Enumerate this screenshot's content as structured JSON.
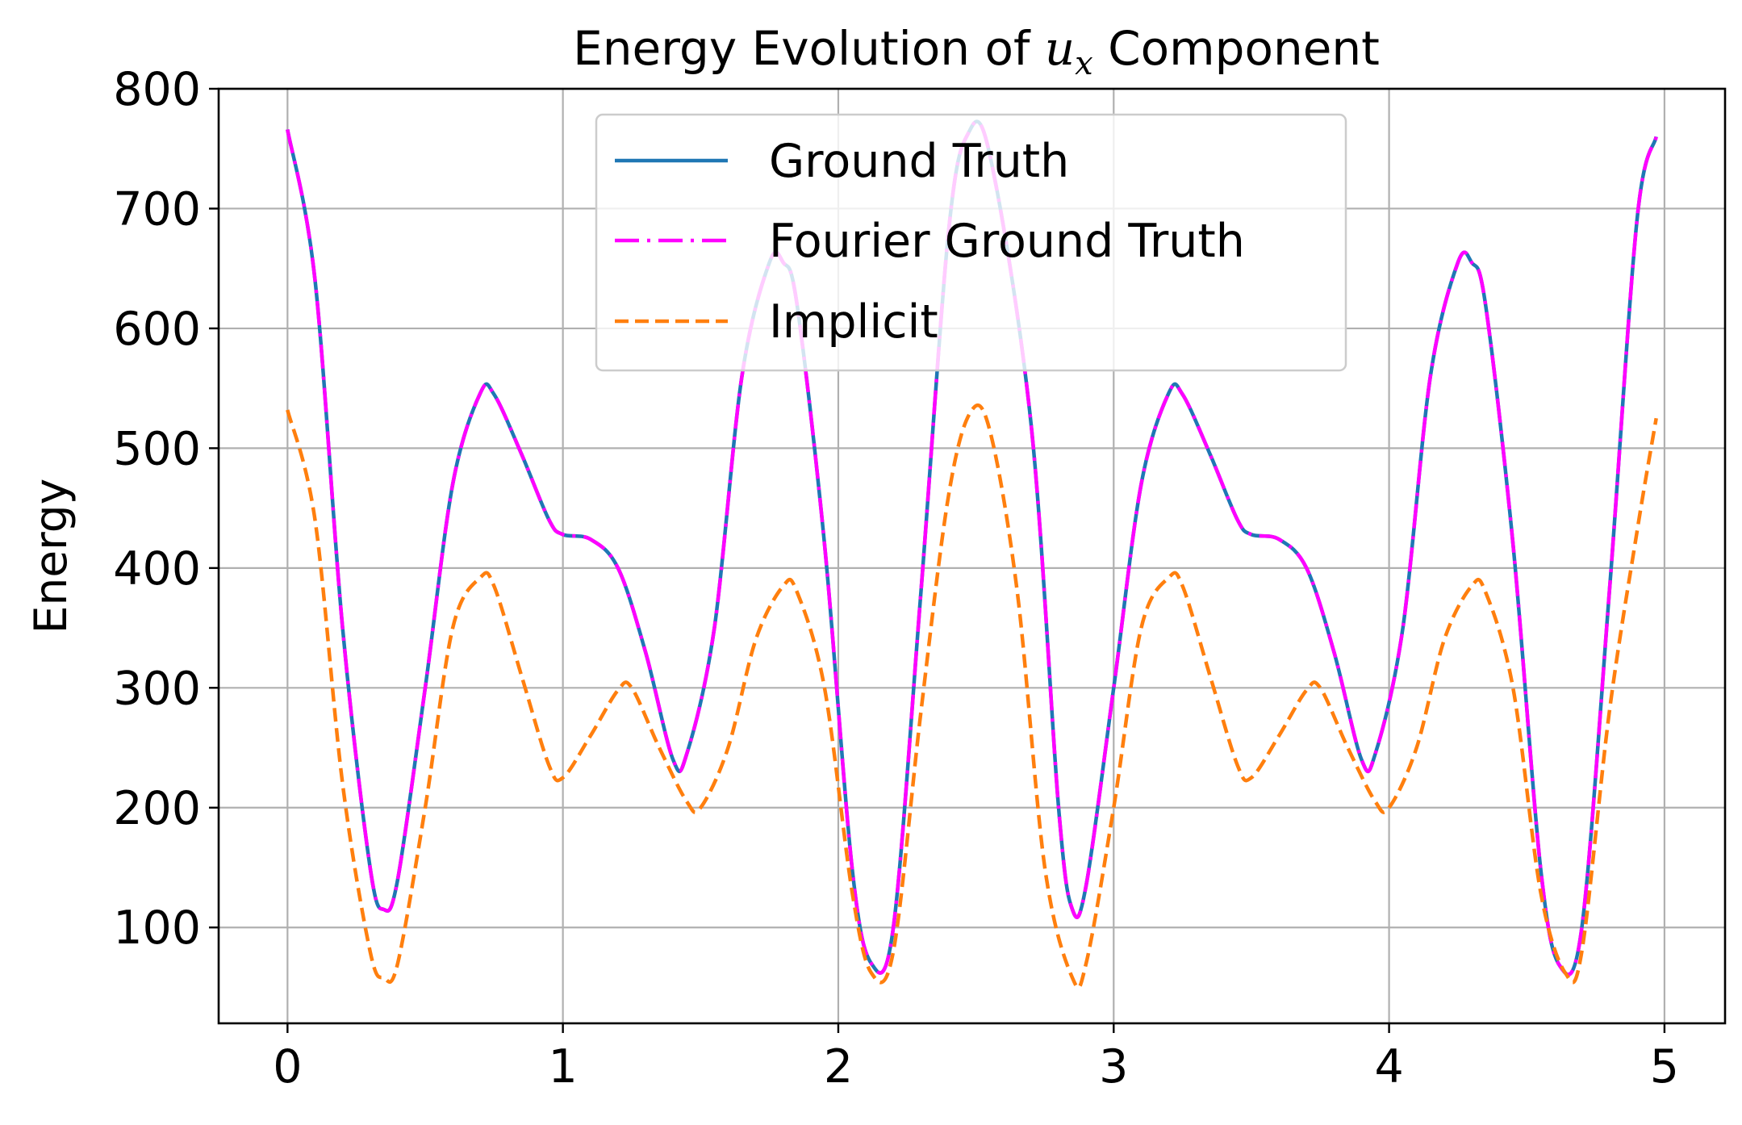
{
  "chart_data": {
    "type": "line",
    "title_prefix": "Energy Evolution of ",
    "title_var": "u",
    "title_sub": "x",
    "title_suffix": " Component",
    "xlabel": "",
    "ylabel": "Energy",
    "xlim": [
      -0.25,
      5.22
    ],
    "ylim": [
      20,
      800
    ],
    "xticks": [
      0,
      1,
      2,
      3,
      4,
      5
    ],
    "xtick_labels": [
      "0",
      "1",
      "2",
      "3",
      "4",
      "5"
    ],
    "yticks": [
      100,
      200,
      300,
      400,
      500,
      600,
      700,
      800
    ],
    "ytick_labels": [
      "100",
      "200",
      "300",
      "400",
      "500",
      "600",
      "700",
      "800"
    ],
    "grid": true,
    "legend_position": "top-center",
    "series": [
      {
        "name": "Ground Truth",
        "color": "#1f77b4",
        "style": "solid",
        "points": [
          [
            0,
            766
          ],
          [
            0.1,
            640
          ],
          [
            0.2,
            350
          ],
          [
            0.3,
            150
          ],
          [
            0.35,
            115
          ],
          [
            0.4,
            140
          ],
          [
            0.5,
            300
          ],
          [
            0.6,
            470
          ],
          [
            0.7,
            546
          ],
          [
            0.75,
            545
          ],
          [
            0.85,
            495
          ],
          [
            0.95,
            440
          ],
          [
            1.0,
            428
          ],
          [
            1.1,
            424
          ],
          [
            1.2,
            400
          ],
          [
            1.3,
            330
          ],
          [
            1.4,
            240
          ],
          [
            1.45,
            245
          ],
          [
            1.55,
            350
          ],
          [
            1.65,
            560
          ],
          [
            1.75,
            655
          ],
          [
            1.8,
            655
          ],
          [
            1.85,
            620
          ],
          [
            1.95,
            420
          ],
          [
            2.05,
            150
          ],
          [
            2.12,
            70
          ],
          [
            2.2,
            100
          ],
          [
            2.3,
            380
          ],
          [
            2.4,
            680
          ],
          [
            2.47,
            762
          ],
          [
            2.55,
            745
          ],
          [
            2.7,
            520
          ],
          [
            2.8,
            200
          ],
          [
            2.85,
            115
          ],
          [
            2.9,
            135
          ],
          [
            3.0,
            300
          ],
          [
            3.1,
            470
          ],
          [
            3.2,
            546
          ],
          [
            3.25,
            545
          ],
          [
            3.35,
            495
          ],
          [
            3.45,
            440
          ],
          [
            3.5,
            428
          ],
          [
            3.6,
            424
          ],
          [
            3.7,
            400
          ],
          [
            3.8,
            330
          ],
          [
            3.9,
            240
          ],
          [
            3.95,
            245
          ],
          [
            4.05,
            350
          ],
          [
            4.15,
            560
          ],
          [
            4.25,
            655
          ],
          [
            4.3,
            655
          ],
          [
            4.35,
            620
          ],
          [
            4.45,
            420
          ],
          [
            4.55,
            150
          ],
          [
            4.62,
            68
          ],
          [
            4.7,
            100
          ],
          [
            4.8,
            380
          ],
          [
            4.9,
            690
          ],
          [
            4.97,
            760
          ]
        ]
      },
      {
        "name": "Fourier Ground Truth",
        "color": "#ff00ff",
        "style": "dashdot",
        "points": [
          [
            0,
            766
          ],
          [
            0.1,
            640
          ],
          [
            0.2,
            350
          ],
          [
            0.3,
            150
          ],
          [
            0.35,
            115
          ],
          [
            0.4,
            140
          ],
          [
            0.5,
            300
          ],
          [
            0.6,
            470
          ],
          [
            0.7,
            546
          ],
          [
            0.75,
            545
          ],
          [
            0.85,
            495
          ],
          [
            0.95,
            440
          ],
          [
            1.0,
            428
          ],
          [
            1.1,
            424
          ],
          [
            1.2,
            400
          ],
          [
            1.3,
            330
          ],
          [
            1.4,
            240
          ],
          [
            1.45,
            245
          ],
          [
            1.55,
            350
          ],
          [
            1.65,
            560
          ],
          [
            1.75,
            655
          ],
          [
            1.8,
            655
          ],
          [
            1.85,
            620
          ],
          [
            1.95,
            420
          ],
          [
            2.05,
            150
          ],
          [
            2.12,
            70
          ],
          [
            2.2,
            100
          ],
          [
            2.3,
            380
          ],
          [
            2.4,
            680
          ],
          [
            2.47,
            762
          ],
          [
            2.55,
            745
          ],
          [
            2.7,
            520
          ],
          [
            2.8,
            200
          ],
          [
            2.85,
            115
          ],
          [
            2.9,
            135
          ],
          [
            3.0,
            300
          ],
          [
            3.1,
            470
          ],
          [
            3.2,
            546
          ],
          [
            3.25,
            545
          ],
          [
            3.35,
            495
          ],
          [
            3.45,
            440
          ],
          [
            3.5,
            428
          ],
          [
            3.6,
            424
          ],
          [
            3.7,
            400
          ],
          [
            3.8,
            330
          ],
          [
            3.9,
            240
          ],
          [
            3.95,
            245
          ],
          [
            4.05,
            350
          ],
          [
            4.15,
            560
          ],
          [
            4.25,
            655
          ],
          [
            4.3,
            655
          ],
          [
            4.35,
            620
          ],
          [
            4.45,
            420
          ],
          [
            4.55,
            150
          ],
          [
            4.62,
            68
          ],
          [
            4.7,
            100
          ],
          [
            4.8,
            380
          ],
          [
            4.9,
            690
          ],
          [
            4.97,
            760
          ]
        ]
      },
      {
        "name": "Implicit",
        "color": "#ff7f0e",
        "style": "dashed",
        "points": [
          [
            0,
            532
          ],
          [
            0.1,
            440
          ],
          [
            0.2,
            220
          ],
          [
            0.3,
            80
          ],
          [
            0.35,
            58
          ],
          [
            0.4,
            70
          ],
          [
            0.5,
            200
          ],
          [
            0.6,
            350
          ],
          [
            0.7,
            392
          ],
          [
            0.75,
            385
          ],
          [
            0.85,
            310
          ],
          [
            0.95,
            235
          ],
          [
            1.0,
            225
          ],
          [
            1.1,
            260
          ],
          [
            1.2,
            298
          ],
          [
            1.25,
            300
          ],
          [
            1.35,
            250
          ],
          [
            1.45,
            205
          ],
          [
            1.5,
            200
          ],
          [
            1.6,
            250
          ],
          [
            1.7,
            340
          ],
          [
            1.8,
            385
          ],
          [
            1.85,
            380
          ],
          [
            1.95,
            300
          ],
          [
            2.05,
            130
          ],
          [
            2.12,
            62
          ],
          [
            2.2,
            80
          ],
          [
            2.3,
            280
          ],
          [
            2.4,
            460
          ],
          [
            2.48,
            530
          ],
          [
            2.55,
            515
          ],
          [
            2.65,
            380
          ],
          [
            2.75,
            150
          ],
          [
            2.85,
            58
          ],
          [
            2.9,
            70
          ],
          [
            3.0,
            200
          ],
          [
            3.1,
            350
          ],
          [
            3.2,
            392
          ],
          [
            3.25,
            385
          ],
          [
            3.35,
            310
          ],
          [
            3.45,
            235
          ],
          [
            3.5,
            225
          ],
          [
            3.6,
            260
          ],
          [
            3.7,
            298
          ],
          [
            3.75,
            300
          ],
          [
            3.85,
            250
          ],
          [
            3.95,
            205
          ],
          [
            4.0,
            200
          ],
          [
            4.1,
            250
          ],
          [
            4.2,
            340
          ],
          [
            4.3,
            385
          ],
          [
            4.35,
            380
          ],
          [
            4.45,
            300
          ],
          [
            4.55,
            130
          ],
          [
            4.64,
            62
          ],
          [
            4.7,
            80
          ],
          [
            4.8,
            280
          ],
          [
            4.9,
            430
          ],
          [
            4.97,
            525
          ]
        ]
      }
    ]
  }
}
